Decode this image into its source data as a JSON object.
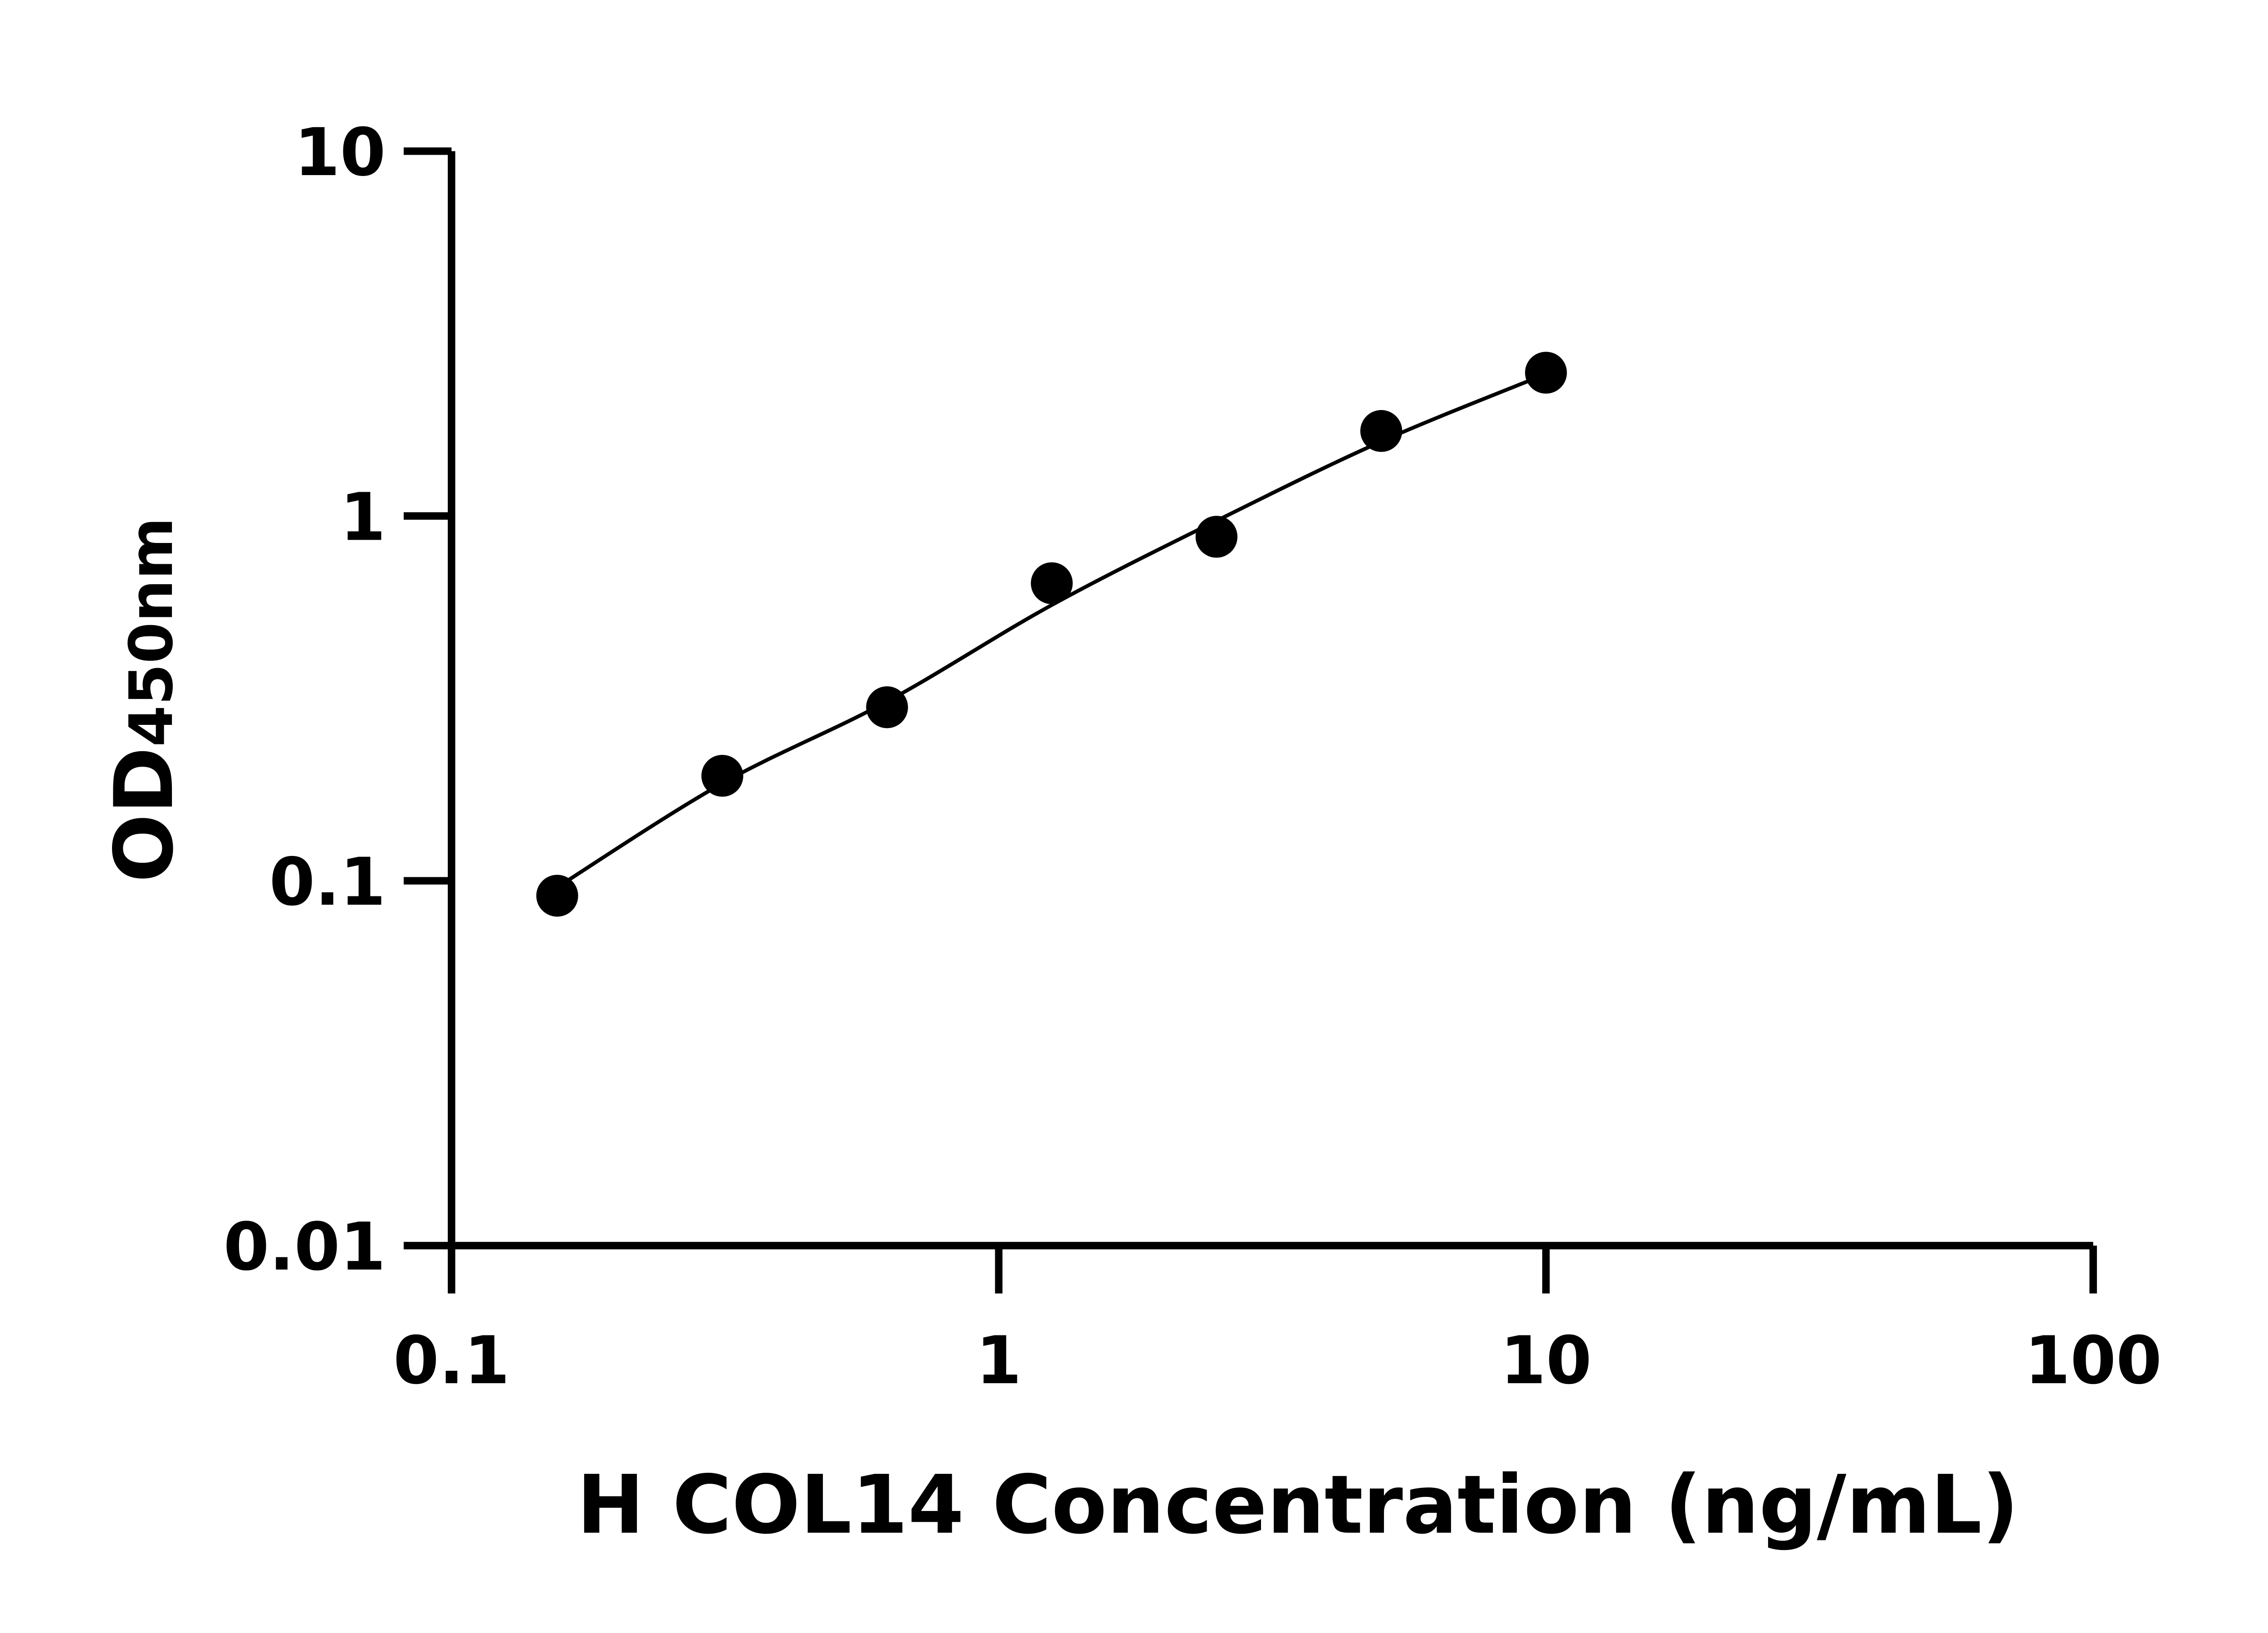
{
  "chart_data": {
    "type": "scatter",
    "title": "",
    "xlabel": "H COL14 Concentration (ng/mL)",
    "ylabel_main": "OD",
    "ylabel_sub": "450nm",
    "xscale": "log",
    "yscale": "log",
    "xlim": [
      0.1,
      100
    ],
    "ylim": [
      0.01,
      10
    ],
    "xticks": [
      "0.1",
      "1",
      "10",
      "100"
    ],
    "yticks": [
      "0.01",
      "0.1",
      "1",
      "10"
    ],
    "grid": false,
    "legend": "none",
    "color": "#000000",
    "points": {
      "x": [
        0.156,
        0.3125,
        0.625,
        1.25,
        2.5,
        5,
        10
      ],
      "y": [
        0.091,
        0.194,
        0.299,
        0.654,
        0.877,
        1.71,
        2.47
      ]
    },
    "fit_curve": {
      "x": [
        0.156,
        0.3125,
        0.625,
        1.25,
        2.5,
        5,
        10
      ],
      "y": [
        0.096,
        0.185,
        0.31,
        0.57,
        0.97,
        1.6,
        2.45
      ]
    }
  }
}
